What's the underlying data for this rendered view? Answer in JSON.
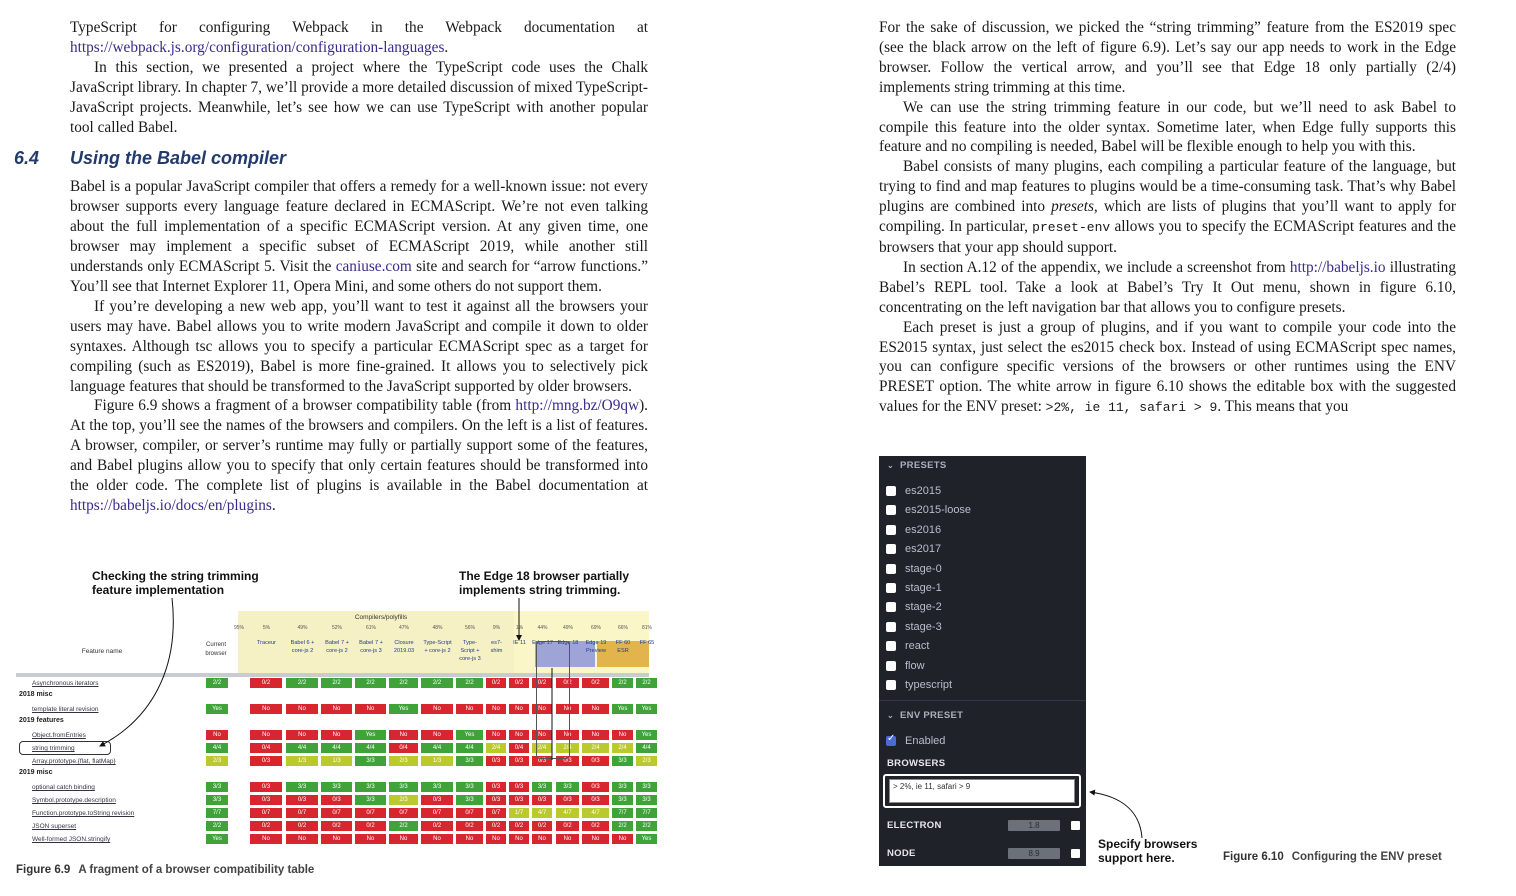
{
  "left_page": {
    "para1": {
      "text_a": "TypeScript for configuring Webpack in the Webpack documentation at ",
      "link": "https://webpack.js.org/configuration/configuration-languages",
      "text_b": "."
    },
    "para2": "In this section, we presented a project where the TypeScript code uses the Chalk JavaScript library. In chapter 7, we’ll provide a more detailed discussion of mixed TypeScript-JavaScript projects. Meanwhile, let’s see how we can use TypeScript with another popular tool called Babel.",
    "section": {
      "number": "6.4",
      "title": "Using the Babel compiler"
    },
    "para3": {
      "text_a": "Babel is a popular JavaScript compiler that offers a remedy for a well-known issue: not every browser supports every language feature declared in ECMAScript. We’re not even talking about the full implementation of a specific ECMAScript version. At any given time, one browser may implement a specific subset of ECMAScript 2019, while another still understands only ECMAScript 5. Visit the ",
      "link": "caniuse.com",
      "text_b": " site and search for “arrow functions.” You’ll see that Internet Explorer 11, Opera Mini, and some others do not support them."
    },
    "para4": "If you’re developing a new web app, you’ll want to test it against all the browsers your users may have. Babel allows you to write modern JavaScript and compile it down to older syntaxes. Although tsc allows you to specify a particular ECMAScript spec as a target for compiling (such as ES2019), Babel is more fine-grained. It allows you to selectively pick language features that should be transformed to the JavaScript supported by older browsers.",
    "para5": {
      "text_a": "Figure 6.9 shows a fragment of a browser compatibility table (from ",
      "link": "http://mng.bz/O9qw",
      "text_b": "). At the top, you’ll see the names of the browsers and compilers. On the left is a list of features. A browser, compiler, or server’s runtime may fully or partially support some of the features, and Babel plugins allow you to specify that only certain features should be transformed into the older code. The complete list of plugins is available in the Babel documentation at ",
      "link2": "https://babeljs.io/docs/en/plugins",
      "text_c": "."
    },
    "callout_left": "Checking the string trimming feature implementation",
    "callout_right": "The Edge 18 browser partially implements string trimming.",
    "figure_label": "Figure 6.9",
    "figure_caption": "A fragment of a browser compatibility table"
  },
  "compat_table": {
    "group_header": "Compilers/polyfills",
    "feature_header": "Feature name",
    "current_browser": "Current browser",
    "columns": [
      "Traceur",
      "Babel 6 + core-js 2",
      "Babel 7 + core-js 2",
      "Babel 7 + core-js 3",
      "Closure 2019.03",
      "Type-Script + core-js 2",
      "Type-Script + core-js 3",
      "es7-shim",
      "IE 11",
      "Edge 17",
      "Edge 18",
      "Edge 19 Preview",
      "FF 60 ESR",
      "FF 65"
    ],
    "percentages": [
      "95%",
      "5%",
      "49%",
      "52%",
      "61%",
      "47%",
      "48%",
      "56%",
      "9%",
      "1%",
      "44%",
      "49%",
      "69%",
      "66%",
      "81%"
    ],
    "rows": [
      {
        "group": "",
        "label": "Asynchronous iterators",
        "current": "2/2",
        "values": [
          "0/2",
          "2/2",
          "2/2",
          "2/2",
          "2/2",
          "2/2",
          "2/2",
          "0/2",
          "0/2",
          "0/2",
          "0/2",
          "0/2",
          "2/2",
          "2/2"
        ]
      },
      {
        "group": "2018 misc",
        "label": "template literal revision",
        "current": "Yes",
        "values": [
          "No",
          "No",
          "No",
          "No",
          "Yes",
          "No",
          "No",
          "No",
          "No",
          "No",
          "No",
          "No",
          "Yes",
          "Yes"
        ]
      },
      {
        "group": "2019 features",
        "label": "Object.fromEntries",
        "current": "No",
        "values": [
          "No",
          "No",
          "No",
          "Yes",
          "No",
          "No",
          "Yes",
          "No",
          "No",
          "No",
          "No",
          "No",
          "No",
          "Yes"
        ]
      },
      {
        "group": "",
        "label": "string trimming",
        "current": "4/4",
        "values": [
          "0/4",
          "4/4",
          "4/4",
          "4/4",
          "0/4",
          "4/4",
          "4/4",
          "2/4",
          "0/4",
          "2/4",
          "2/4",
          "2/4",
          "2/4",
          "4/4"
        ]
      },
      {
        "group": "",
        "label": "Array.prototype.{flat, flatMap}",
        "current": "2/3",
        "values": [
          "0/3",
          "1/3",
          "1/3",
          "3/3",
          "2/3",
          "1/3",
          "3/3",
          "0/3",
          "0/3",
          "0/3",
          "0/3",
          "0/3",
          "3/3",
          "2/3"
        ]
      },
      {
        "group": "2019 misc",
        "label": "optional catch binding",
        "current": "3/3",
        "values": [
          "0/3",
          "3/3",
          "3/3",
          "3/3",
          "3/3",
          "3/3",
          "3/3",
          "0/3",
          "0/3",
          "3/3",
          "3/3",
          "0/3",
          "3/3",
          "3/3"
        ]
      },
      {
        "group": "",
        "label": "Symbol.prototype.description",
        "current": "3/3",
        "values": [
          "0/3",
          "0/3",
          "0/3",
          "3/3",
          "2/3",
          "0/3",
          "3/3",
          "0/3",
          "0/3",
          "0/3",
          "0/3",
          "0/3",
          "3/3",
          "3/3"
        ]
      },
      {
        "group": "",
        "label": "Function.prototype.toString revision",
        "current": "7/7",
        "values": [
          "0/7",
          "0/7",
          "0/7",
          "0/7",
          "0/7",
          "0/7",
          "0/7",
          "0/7",
          "1/7",
          "4/7",
          "4/7",
          "4/7",
          "7/7",
          "7/7"
        ]
      },
      {
        "group": "",
        "label": "JSON superset",
        "current": "2/2",
        "values": [
          "0/2",
          "0/2",
          "0/2",
          "0/2",
          "2/2",
          "0/2",
          "0/2",
          "0/2",
          "0/2",
          "0/2",
          "0/2",
          "0/2",
          "2/2",
          "2/2"
        ]
      },
      {
        "group": "",
        "label": "Well-formed JSON.stringify",
        "current": "Yes",
        "values": [
          "No",
          "No",
          "No",
          "No",
          "No",
          "No",
          "No",
          "No",
          "No",
          "No",
          "No",
          "No",
          "No",
          "Yes"
        ]
      }
    ]
  },
  "right_page": {
    "para1": "For the sake of discussion, we picked the “string trimming” feature from the ES2019 spec (see the black arrow on the left of figure 6.9). Let’s say our app needs to work in the Edge browser. Follow the vertical arrow, and you’ll see that Edge 18 only partially (2/4) implements string trimming at this time.",
    "para2": "We can use the string trimming feature in our code, but we’ll need to ask Babel to compile this feature into the older syntax. Sometime later, when Edge fully supports this feature and no compiling is needed, Babel will be flexible enough to help you with this.",
    "para3": {
      "text_a": "Babel consists of many plugins, each compiling a particular feature of the language, but trying to find and map features to plugins would be a time-consuming task. That’s why Babel plugins are combined into ",
      "italic": "presets",
      "text_b": ", which are lists of plugins that you’ll want to apply for compiling. In particular, ",
      "code": "preset-env",
      "text_c": " allows you to specify the ECMAScript features and the browsers that your app should support."
    },
    "para4": {
      "text_a": "In section A.12 of the appendix, we include a screenshot from ",
      "link": "http://babeljs.io",
      "text_b": " illustrating Babel’s REPL tool. Take a look at Babel’s Try It Out menu, shown in figure 6.10, concentrating on the left navigation bar that allows you to configure presets."
    },
    "para5": {
      "text_a": "Each preset is just a group of plugins, and if you want to compile your code into the ES2015 syntax, just select the es2015 check box. Instead of using ECMAScript spec names, you can configure specific versions of the browsers or other runtimes using the ENV PRESET option. The white arrow in figure 6.10 shows the editable box with the suggested values for the ENV preset: ",
      "code": ">2%, ie 11, safari > 9",
      "text_b": ". This means that you"
    },
    "callout": "Specify browsers support here.",
    "figure_label": "Figure 6.10",
    "figure_caption": "Configuring the ENV preset"
  },
  "presets_panel": {
    "presets_header": "PRESETS",
    "presets": [
      "es2015",
      "es2015-loose",
      "es2016",
      "es2017",
      "stage-0",
      "stage-1",
      "stage-2",
      "stage-3",
      "react",
      "flow",
      "typescript"
    ],
    "env_header": "ENV PRESET",
    "enabled_label": "Enabled",
    "browsers_label": "BROWSERS",
    "browsers_value": "> 2%, ie 11, safari > 9",
    "electron_label": "ELECTRON",
    "electron_value": "1.8",
    "node_label": "NODE",
    "node_value": "8.9",
    "chevron_icon": "chevron-down-icon",
    "colors": {
      "panel_bg": "#1f2229",
      "checkbox_on": "#4a6bd4"
    }
  }
}
